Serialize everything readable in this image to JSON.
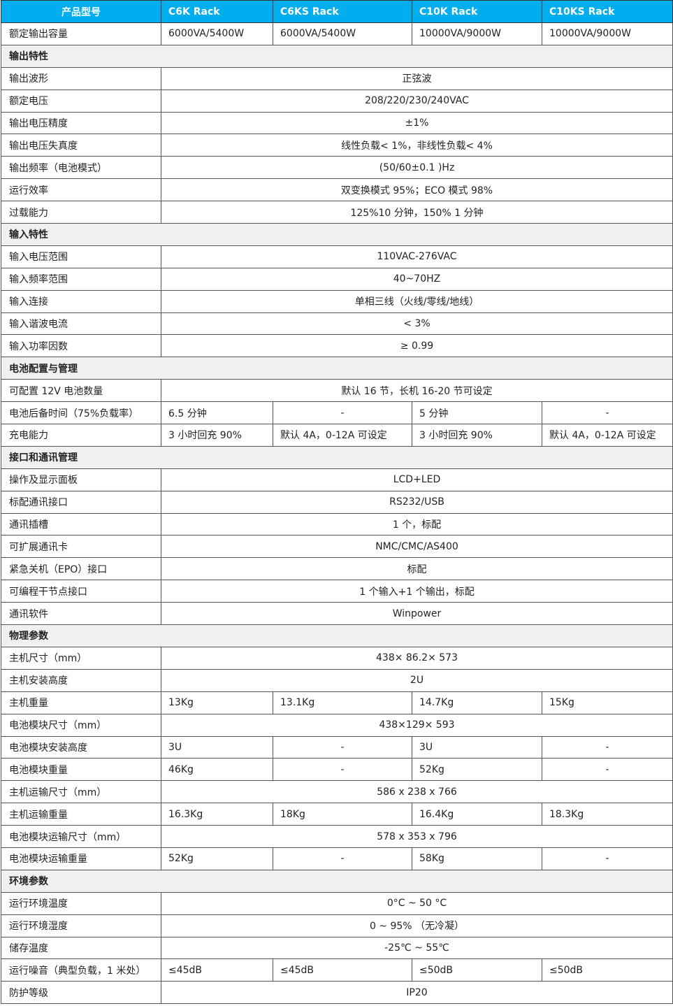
{
  "header": [
    "产品型号",
    "C6K Rack",
    "C6KS Rack",
    "C10K Rack",
    "C10KS Rack"
  ],
  "colors": {
    "header_bg": "#00aeef",
    "section_bg": "#f0f0f0"
  },
  "rows": [
    {
      "type": "split",
      "label": "额定输出容量",
      "values": [
        "6000VA/5400W",
        "6000VA/5400W",
        "10000VA/9000W",
        "10000VA/9000W"
      ]
    },
    {
      "type": "section",
      "label": "输出特性"
    },
    {
      "type": "span",
      "label": "输出波形",
      "value": "正弦波"
    },
    {
      "type": "span",
      "label": "额定电压",
      "value": "208/220/230/240VAC"
    },
    {
      "type": "span",
      "label": "输出电压精度",
      "value": "±1%"
    },
    {
      "type": "span",
      "label": "输出电压失真度",
      "value": "线性负载< 1%，非线性负载< 4%"
    },
    {
      "type": "span",
      "label": "输出频率（电池模式）",
      "value": "(50/60±0.1 )Hz"
    },
    {
      "type": "span",
      "label": "运行效率",
      "value": "双变换模式 95%；ECO 模式 98%"
    },
    {
      "type": "span",
      "label": "过载能力",
      "value": "125%10 分钟，150% 1 分钟"
    },
    {
      "type": "section",
      "label": "输入特性"
    },
    {
      "type": "span",
      "label": "输入电压范围",
      "value": "110VAC-276VAC"
    },
    {
      "type": "span",
      "label": "输入频率范围",
      "value": "40~70HZ"
    },
    {
      "type": "span",
      "label": "输入连接",
      "value": "单相三线（火线/零线/地线）"
    },
    {
      "type": "span",
      "label": "输入谐波电流",
      "value": "< 3%"
    },
    {
      "type": "span",
      "label": "输入功率因数",
      "value": "≥ 0.99"
    },
    {
      "type": "section",
      "label": "电池配置与管理"
    },
    {
      "type": "span",
      "label": "可配置 12V 电池数量",
      "value": "默认 16 节，长机 16-20 节可设定"
    },
    {
      "type": "split",
      "label": "电池后备时间（75%负载率）",
      "values": [
        "6.5 分钟",
        "-",
        "5 分钟",
        "-"
      ]
    },
    {
      "type": "split",
      "label": "充电能力",
      "values": [
        "3 小时回充 90%",
        "默认 4A，0-12A 可设定",
        "3 小时回充 90%",
        "默认 4A，0-12A 可设定"
      ]
    },
    {
      "type": "section",
      "label": "接口和通讯管理"
    },
    {
      "type": "span",
      "label": "操作及显示面板",
      "value": "LCD+LED"
    },
    {
      "type": "span",
      "label": "标配通讯接口",
      "value": "RS232/USB"
    },
    {
      "type": "span",
      "label": "通讯插槽",
      "value": "1 个，标配"
    },
    {
      "type": "span",
      "label": "可扩展通讯卡",
      "value": "NMC/CMC/AS400"
    },
    {
      "type": "span",
      "label": "紧急关机（EPO）接口",
      "value": "标配"
    },
    {
      "type": "span",
      "label": "可编程干节点接口",
      "value": "1 个输入+1 个输出，标配"
    },
    {
      "type": "span",
      "label": "通讯软件",
      "value": "Winpower"
    },
    {
      "type": "section",
      "label": "物理参数"
    },
    {
      "type": "span",
      "label": "主机尺寸（mm）",
      "value": "438× 86.2× 573"
    },
    {
      "type": "span",
      "label": "主机安装高度",
      "value": "2U"
    },
    {
      "type": "split",
      "label": "主机重量",
      "values": [
        "13Kg",
        "13.1Kg",
        "14.7Kg",
        "15Kg"
      ]
    },
    {
      "type": "span",
      "label": "电池模块尺寸（mm）",
      "value": "438×129× 593"
    },
    {
      "type": "split",
      "label": "电池模块安装高度",
      "values": [
        "3U",
        "-",
        "3U",
        "-"
      ]
    },
    {
      "type": "split",
      "label": "电池模块重量",
      "values": [
        "46Kg",
        "-",
        "52Kg",
        "-"
      ]
    },
    {
      "type": "span",
      "label": "主机运输尺寸（mm）",
      "value": "586 x 238 x 766"
    },
    {
      "type": "split",
      "label": "主机运输重量",
      "values": [
        "16.3Kg",
        "18Kg",
        "16.4Kg",
        "18.3Kg"
      ]
    },
    {
      "type": "span",
      "label": "电池模块运输尺寸（mm）",
      "value": "578 x 353 x 796"
    },
    {
      "type": "split",
      "label": "电池模块运输重量",
      "values": [
        "52Kg",
        "-",
        "58Kg",
        "-"
      ]
    },
    {
      "type": "section",
      "label": "环境参数"
    },
    {
      "type": "span",
      "label": "运行环境温度",
      "value": "0°C ~ 50 °C"
    },
    {
      "type": "span",
      "label": "运行环境湿度",
      "value": "0 ~ 95% （无冷凝）"
    },
    {
      "type": "span",
      "label": "储存温度",
      "value": "-25℃ ~ 55℃"
    },
    {
      "type": "split",
      "label": "运行噪音（典型负载，1 米处）",
      "values": [
        "≤45dB",
        "≤45dB",
        "≤50dB",
        "≤50dB"
      ]
    },
    {
      "type": "span",
      "label": "防护等级",
      "value": "IP20"
    }
  ]
}
